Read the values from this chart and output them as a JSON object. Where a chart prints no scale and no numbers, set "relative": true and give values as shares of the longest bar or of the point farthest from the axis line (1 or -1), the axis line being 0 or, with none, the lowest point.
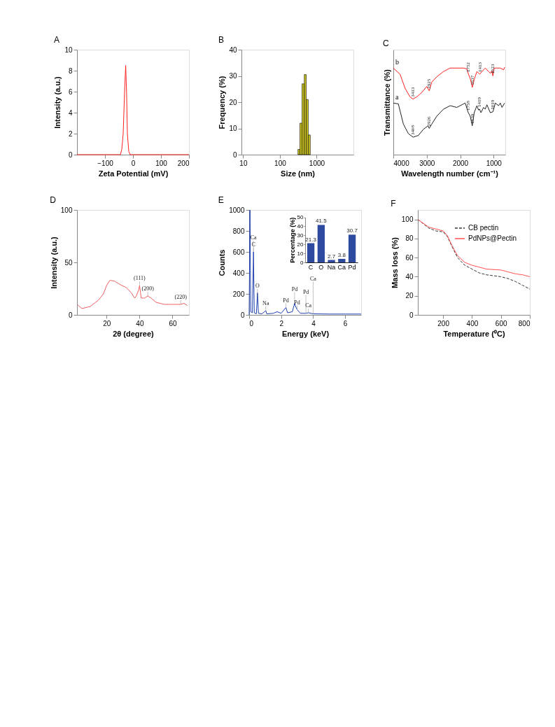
{
  "chart_data": [
    {
      "type": "line",
      "title": "A",
      "xlabel": "Zeta Potential (mV)",
      "ylabel": "Intensity (a.u.)",
      "xlim": [
        -200,
        200
      ],
      "xticks": [
        -100,
        0,
        100,
        200
      ],
      "ylim": [
        0,
        10
      ],
      "yticks": [
        0,
        2,
        4,
        6,
        8,
        10
      ],
      "legend": false,
      "grid": false,
      "series": [
        {
          "color": "#ff2020",
          "x": [
            -200,
            -45,
            -40,
            -35,
            -30,
            -26,
            -23,
            -20,
            -15,
            -10,
            200
          ],
          "values": [
            0,
            0,
            0.5,
            2,
            6,
            8.5,
            6,
            2,
            0.3,
            0,
            0
          ]
        }
      ]
    },
    {
      "type": "histogram",
      "title": "B",
      "xlabel": "Size (nm)",
      "ylabel": "Frequency (%)",
      "log": "x",
      "xlim": [
        9,
        10000
      ],
      "xticks": [
        10,
        100,
        1000
      ],
      "ylim": [
        0,
        40
      ],
      "yticks": [
        0,
        10,
        20,
        30,
        40
      ],
      "grid": false,
      "color": "#c8c020",
      "bins": [
        310,
        350,
        400,
        460,
        520,
        590,
        670
      ],
      "values": [
        2,
        12,
        27,
        30.5,
        21,
        7.5
      ]
    },
    {
      "type": "line",
      "title": "C",
      "xlabel": "Wavelength number (cm⁻¹)",
      "ylabel": "Transmittance (%)",
      "relative": true,
      "tick_labels": "x",
      "xlim": [
        4000,
        650
      ],
      "xticks": [
        4000,
        3000,
        2000,
        1000
      ],
      "legend": false,
      "grid": false,
      "series": [
        {
          "name": "a",
          "color": "#222222",
          "x": [
            4000,
            3850,
            3700,
            3550,
            3408,
            3250,
            3100,
            2960,
            2926,
            2850,
            2700,
            2500,
            2300,
            2100,
            1950,
            1850,
            1758,
            1700,
            1639,
            1580,
            1500,
            1450,
            1419,
            1380,
            1300,
            1250,
            1200,
            1100,
            1019,
            950,
            850,
            800,
            750,
            670
          ],
          "values": [
            0.59,
            0.58,
            0.35,
            0.24,
            0.2,
            0.22,
            0.29,
            0.33,
            0.3,
            0.35,
            0.44,
            0.52,
            0.56,
            0.54,
            0.57,
            0.59,
            0.48,
            0.44,
            0.33,
            0.48,
            0.56,
            0.51,
            0.52,
            0.48,
            0.54,
            0.52,
            0.57,
            0.48,
            0.49,
            0.59,
            0.56,
            0.59,
            0.54,
            0.59
          ]
        },
        {
          "name": "b",
          "color": "#ff2020",
          "x": [
            4000,
            3800,
            3650,
            3500,
            3413,
            3300,
            3150,
            3000,
            2925,
            2850,
            2700,
            2500,
            2300,
            1900,
            1800,
            1752,
            1700,
            1637,
            1580,
            1500,
            1413,
            1350,
            1250,
            1150,
            1100,
            1050,
            1023,
            980,
            900,
            800,
            700,
            670
          ],
          "values": [
            0.99,
            0.92,
            0.76,
            0.66,
            0.635,
            0.66,
            0.71,
            0.78,
            0.73,
            0.83,
            0.89,
            0.95,
            0.99,
            0.99,
            0.98,
            0.92,
            0.87,
            0.77,
            0.86,
            0.95,
            0.92,
            0.95,
            0.99,
            0.95,
            0.93,
            0.96,
            0.9,
            0.99,
            0.99,
            0.99,
            0.97,
            1
          ]
        }
      ],
      "annotations": [
        {
          "text": "3413",
          "x": 3413,
          "y": 0.635
        },
        {
          "text": "2925",
          "x": 2925,
          "y": 0.73
        },
        {
          "text": "1752",
          "x": 1752,
          "y": 0.92
        },
        {
          "text": "1637",
          "x": 1637,
          "y": 0.77
        },
        {
          "text": "1413",
          "x": 1413,
          "y": 0.92
        },
        {
          "text": "1023",
          "x": 1023,
          "y": 0.9
        },
        {
          "text": "3408",
          "x": 3408,
          "y": 0.2
        },
        {
          "text": "2926",
          "x": 2926,
          "y": 0.3
        },
        {
          "text": "1758",
          "x": 1758,
          "y": 0.48
        },
        {
          "text": "1639",
          "x": 1639,
          "y": 0.33
        },
        {
          "text": "1419",
          "x": 1419,
          "y": 0.52
        },
        {
          "text": "1019",
          "x": 1019,
          "y": 0.49
        }
      ]
    },
    {
      "type": "line",
      "title": "D",
      "xlabel": "2θ (degree)",
      "ylabel": "Intensity (a.u.)",
      "xlim": [
        2,
        70
      ],
      "xticks": [
        20,
        40,
        60
      ],
      "ylim": [
        0,
        100
      ],
      "yticks": [
        0,
        50,
        100
      ],
      "legend": false,
      "grid": false,
      "series": [
        {
          "color": "#f06060",
          "x": [
            2.3,
            5,
            10,
            15,
            18,
            20,
            22,
            25,
            28,
            32,
            35,
            37,
            38,
            39.5,
            40,
            41,
            43,
            45,
            47,
            50,
            55,
            60,
            65,
            67,
            69
          ],
          "values": [
            9.7,
            6,
            8,
            14,
            20,
            28,
            33,
            32,
            29,
            26,
            21,
            16,
            18,
            24,
            28,
            16,
            16,
            18,
            16,
            12,
            10,
            10,
            10,
            11,
            9
          ]
        }
      ],
      "annotations": [
        {
          "text": "(111)",
          "x": 40,
          "y": 28
        },
        {
          "text": "(200)",
          "x": 45,
          "y": 18
        },
        {
          "text": "(220)",
          "x": 65,
          "y": 10
        }
      ]
    },
    {
      "type": "line",
      "title": "E",
      "xlabel": "Energy (keV)",
      "ylabel": "Counts",
      "xlim": [
        0,
        7
      ],
      "xticks": [
        0,
        2,
        4,
        6
      ],
      "ylim": [
        0,
        1000
      ],
      "yticks": [
        0,
        200,
        400,
        600,
        800,
        1000
      ],
      "legend": false,
      "grid": false,
      "series": [
        {
          "color": "#2040b0",
          "x": [
            0,
            0.05,
            0.1,
            0.2,
            0.27,
            0.32,
            0.45,
            0.52,
            0.58,
            0.8,
            1.04,
            1.1,
            1.5,
            1.75,
            2.0,
            2.3,
            2.4,
            2.7,
            2.84,
            2.9,
            3.0,
            3.2,
            3.55,
            3.7,
            4.0,
            5,
            6,
            7
          ],
          "values": [
            0,
            1000,
            30,
            20,
            600,
            20,
            10,
            210,
            15,
            10,
            40,
            10,
            15,
            30,
            15,
            70,
            20,
            30,
            110,
            80,
            50,
            15,
            15,
            20,
            10,
            8,
            8,
            8
          ]
        }
      ],
      "annotations": [
        {
          "text": "C",
          "x": 0.27,
          "y": 600
        },
        {
          "text": "Ca",
          "x": 0.27,
          "y": 600
        },
        {
          "text": "O",
          "x": 0.52,
          "y": 210
        },
        {
          "text": "Na",
          "x": 1.04,
          "y": 40
        },
        {
          "text": "Pd",
          "x": 2.3,
          "y": 70
        },
        {
          "text": "Pd",
          "x": 2.84,
          "y": 110
        },
        {
          "text": "Pd",
          "x": 3.0,
          "y": 50
        },
        {
          "text": "Pd",
          "x": 3.55,
          "y": 15
        },
        {
          "text": "Ca",
          "x": 3.7,
          "y": 20
        },
        {
          "text": "Ca",
          "x": 4.0,
          "y": 10
        }
      ]
    },
    {
      "type": "bar",
      "ylabel": "Percentage (%)",
      "categories": [
        "C",
        "O",
        "Na",
        "Ca",
        "Pd"
      ],
      "values": [
        21.3,
        41.5,
        2.7,
        3.8,
        30.7
      ],
      "color": "#2e4a9e",
      "ylim": [
        0,
        50
      ],
      "yticks": [
        0,
        10,
        20,
        30,
        40,
        50
      ],
      "data_labels": true,
      "grid": false
    },
    {
      "type": "line",
      "title": "F",
      "xlabel": "Temperature (⁰C)",
      "ylabel": "Mass loss (%)",
      "xlim": [
        25,
        800
      ],
      "xticks": [
        200,
        400,
        600,
        800
      ],
      "ylim": [
        0,
        110
      ],
      "yticks": [
        0,
        20,
        40,
        60,
        80,
        100
      ],
      "legend": "top right",
      "grid": false,
      "series": [
        {
          "name": "CB pectin",
          "color": "#333333",
          "line_style": "dashed",
          "x": [
            25,
            100,
            150,
            200,
            230,
            260,
            300,
            350,
            400,
            450,
            500,
            600,
            650,
            700,
            750,
            800
          ],
          "values": [
            100,
            91,
            88,
            87,
            82,
            72,
            60,
            52,
            48,
            44,
            42,
            40,
            38,
            35,
            31,
            27
          ]
        },
        {
          "name": "PdNPs@Pectin",
          "color": "#ff5050",
          "line_style": "solid",
          "x": [
            25,
            100,
            150,
            200,
            230,
            260,
            300,
            350,
            400,
            450,
            500,
            600,
            650,
            700,
            750,
            800
          ],
          "values": [
            100,
            92,
            90,
            88,
            83,
            73,
            62,
            55,
            52,
            50,
            48,
            47,
            45,
            43,
            42,
            40
          ]
        }
      ]
    }
  ]
}
